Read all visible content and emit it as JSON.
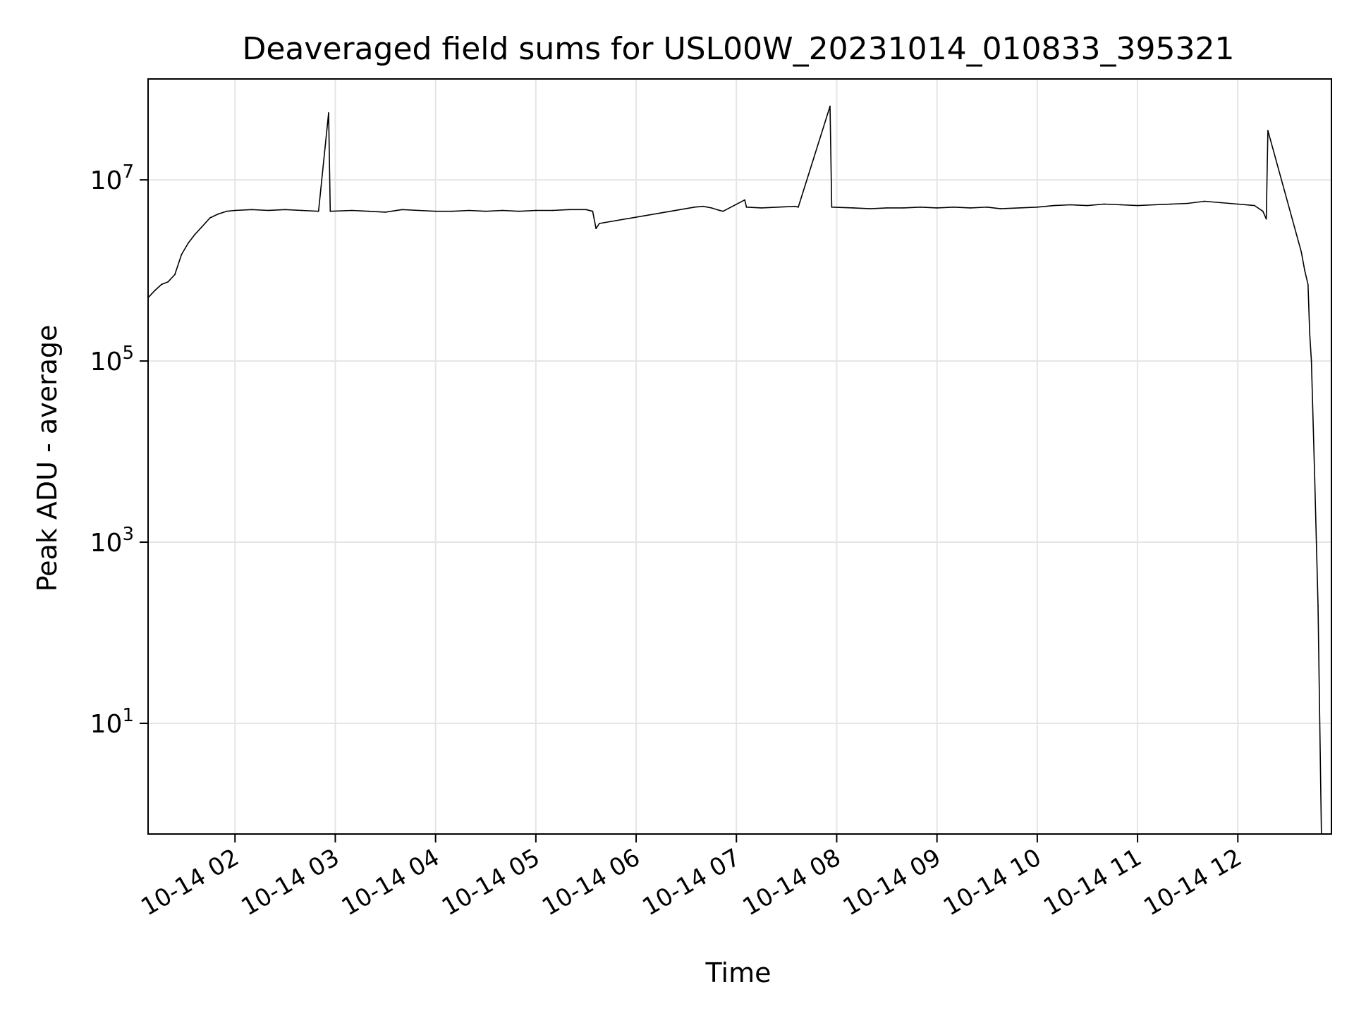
{
  "chart_data": {
    "type": "line",
    "title": "Deaveraged field sums for USL00W_20231014_010833_395321",
    "xlabel": "Time",
    "ylabel": "Peak ADU - average",
    "y_scale": "log",
    "ylim": [
      0.6,
      130000000
    ],
    "xlim": [
      "2023-10-14 01:08",
      "2023-10-14 12:56"
    ],
    "grid": true,
    "legend": "none",
    "colors": {
      "line": "#000000",
      "grid": "#e5e5e5",
      "axes": "#000000",
      "background": "#ffffff"
    },
    "x_ticks": [
      {
        "label": "10-14 02",
        "time": "2023-10-14 02:00"
      },
      {
        "label": "10-14 03",
        "time": "2023-10-14 03:00"
      },
      {
        "label": "10-14 04",
        "time": "2023-10-14 04:00"
      },
      {
        "label": "10-14 05",
        "time": "2023-10-14 05:00"
      },
      {
        "label": "10-14 06",
        "time": "2023-10-14 06:00"
      },
      {
        "label": "10-14 07",
        "time": "2023-10-14 07:00"
      },
      {
        "label": "10-14 08",
        "time": "2023-10-14 08:00"
      },
      {
        "label": "10-14 09",
        "time": "2023-10-14 09:00"
      },
      {
        "label": "10-14 10",
        "time": "2023-10-14 10:00"
      },
      {
        "label": "10-14 11",
        "time": "2023-10-14 11:00"
      },
      {
        "label": "10-14 12",
        "time": "2023-10-14 12:00"
      }
    ],
    "y_ticks": [
      {
        "base": "10",
        "exp": "1",
        "value": 10
      },
      {
        "base": "10",
        "exp": "3",
        "value": 1000
      },
      {
        "base": "10",
        "exp": "5",
        "value": 100000
      },
      {
        "base": "10",
        "exp": "7",
        "value": 10000000
      }
    ],
    "series": [
      {
        "points": [
          [
            "2023-10-14 01:08",
            500000
          ],
          [
            "2023-10-14 01:12",
            600000
          ],
          [
            "2023-10-14 01:16",
            700000
          ],
          [
            "2023-10-14 01:20",
            750000
          ],
          [
            "2023-10-14 01:24",
            900000
          ],
          [
            "2023-10-14 01:28",
            1500000
          ],
          [
            "2023-10-14 01:32",
            2000000
          ],
          [
            "2023-10-14 01:36",
            2500000
          ],
          [
            "2023-10-14 01:40",
            3000000
          ],
          [
            "2023-10-14 01:45",
            3800000
          ],
          [
            "2023-10-14 01:50",
            4200000
          ],
          [
            "2023-10-14 01:55",
            4500000
          ],
          [
            "2023-10-14 02:00",
            4600000
          ],
          [
            "2023-10-14 02:10",
            4700000
          ],
          [
            "2023-10-14 02:20",
            4600000
          ],
          [
            "2023-10-14 02:30",
            4700000
          ],
          [
            "2023-10-14 02:40",
            4600000
          ],
          [
            "2023-10-14 02:50",
            4500000
          ],
          [
            "2023-10-14 02:56",
            55000000
          ],
          [
            "2023-10-14 02:57",
            4500000
          ],
          [
            "2023-10-14 03:10",
            4600000
          ],
          [
            "2023-10-14 03:20",
            4500000
          ],
          [
            "2023-10-14 03:30",
            4400000
          ],
          [
            "2023-10-14 03:40",
            4700000
          ],
          [
            "2023-10-14 03:50",
            4600000
          ],
          [
            "2023-10-14 04:00",
            4500000
          ],
          [
            "2023-10-14 04:10",
            4500000
          ],
          [
            "2023-10-14 04:20",
            4600000
          ],
          [
            "2023-10-14 04:30",
            4500000
          ],
          [
            "2023-10-14 04:40",
            4600000
          ],
          [
            "2023-10-14 04:50",
            4500000
          ],
          [
            "2023-10-14 05:00",
            4600000
          ],
          [
            "2023-10-14 05:10",
            4600000
          ],
          [
            "2023-10-14 05:20",
            4700000
          ],
          [
            "2023-10-14 05:30",
            4700000
          ],
          [
            "2023-10-14 05:34",
            4500000
          ],
          [
            "2023-10-14 05:36",
            2900000
          ],
          [
            "2023-10-14 05:38",
            3300000
          ],
          [
            "2023-10-14 06:35",
            5000000
          ],
          [
            "2023-10-14 06:40",
            5100000
          ],
          [
            "2023-10-14 06:45",
            4900000
          ],
          [
            "2023-10-14 06:50",
            4600000
          ],
          [
            "2023-10-14 06:52",
            4500000
          ],
          [
            "2023-10-14 07:05",
            6000000
          ],
          [
            "2023-10-14 07:06",
            5000000
          ],
          [
            "2023-10-14 07:15",
            4900000
          ],
          [
            "2023-10-14 07:25",
            5000000
          ],
          [
            "2023-10-14 07:35",
            5100000
          ],
          [
            "2023-10-14 07:37",
            5000000
          ],
          [
            "2023-10-14 07:56",
            65000000
          ],
          [
            "2023-10-14 07:57",
            5000000
          ],
          [
            "2023-10-14 08:10",
            4900000
          ],
          [
            "2023-10-14 08:20",
            4800000
          ],
          [
            "2023-10-14 08:30",
            4900000
          ],
          [
            "2023-10-14 08:40",
            4900000
          ],
          [
            "2023-10-14 08:50",
            5000000
          ],
          [
            "2023-10-14 09:00",
            4900000
          ],
          [
            "2023-10-14 09:10",
            5000000
          ],
          [
            "2023-10-14 09:20",
            4900000
          ],
          [
            "2023-10-14 09:30",
            5000000
          ],
          [
            "2023-10-14 09:38",
            4800000
          ],
          [
            "2023-10-14 10:00",
            5000000
          ],
          [
            "2023-10-14 10:10",
            5200000
          ],
          [
            "2023-10-14 10:20",
            5300000
          ],
          [
            "2023-10-14 10:30",
            5200000
          ],
          [
            "2023-10-14 10:40",
            5400000
          ],
          [
            "2023-10-14 10:50",
            5300000
          ],
          [
            "2023-10-14 11:00",
            5200000
          ],
          [
            "2023-10-14 11:10",
            5300000
          ],
          [
            "2023-10-14 11:20",
            5400000
          ],
          [
            "2023-10-14 11:30",
            5500000
          ],
          [
            "2023-10-14 11:40",
            5800000
          ],
          [
            "2023-10-14 11:50",
            5600000
          ],
          [
            "2023-10-14 12:00",
            5400000
          ],
          [
            "2023-10-14 12:10",
            5200000
          ],
          [
            "2023-10-14 12:15",
            4500000
          ],
          [
            "2023-10-14 12:17",
            3700000
          ],
          [
            "2023-10-14 12:18",
            35000000
          ],
          [
            "2023-10-14 12:38",
            1600000
          ],
          [
            "2023-10-14 12:40",
            1000000
          ],
          [
            "2023-10-14 12:42",
            700000
          ],
          [
            "2023-10-14 12:43",
            200000
          ],
          [
            "2023-10-14 12:44",
            100000
          ],
          [
            "2023-10-14 12:46",
            5000
          ],
          [
            "2023-10-14 12:48",
            200
          ],
          [
            "2023-10-14 12:50",
            0.6
          ]
        ]
      }
    ]
  }
}
